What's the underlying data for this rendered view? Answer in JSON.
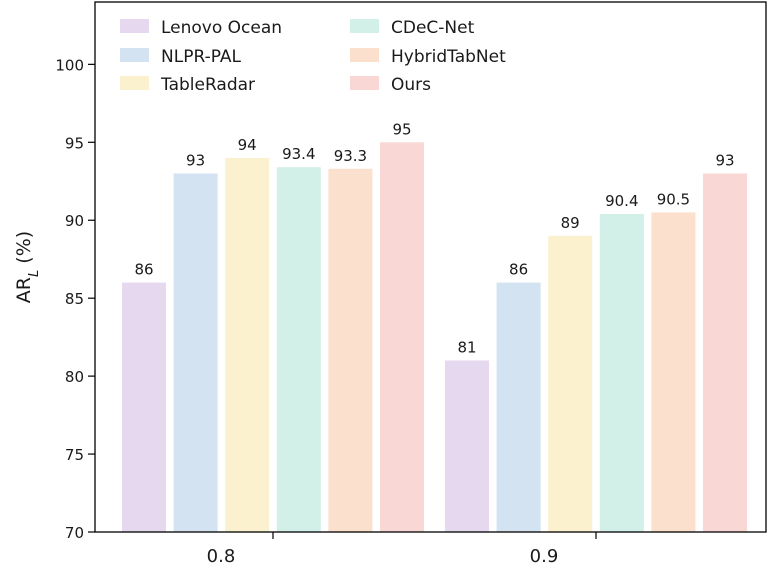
{
  "chart_data": {
    "type": "bar",
    "categories": [
      "0.8",
      "0.9"
    ],
    "series": [
      {
        "name": "Lenovo Ocean",
        "values": [
          86,
          81
        ],
        "color": "#e6d8ee"
      },
      {
        "name": "NLPR-PAL",
        "values": [
          93,
          86
        ],
        "color": "#d3e3f1"
      },
      {
        "name": "TableRadar",
        "values": [
          94,
          89
        ],
        "color": "#fbf1cf"
      },
      {
        "name": "CDeC-Net",
        "values": [
          93.4,
          90.4
        ],
        "color": "#d2efe8"
      },
      {
        "name": "HybridTabNet",
        "values": [
          93.3,
          90.5
        ],
        "color": "#fae0cd"
      },
      {
        "name": "Ours",
        "values": [
          95,
          93
        ],
        "color": "#f8d7d4"
      }
    ],
    "value_labels": [
      [
        "86",
        "81"
      ],
      [
        "93",
        "86"
      ],
      [
        "94",
        "89"
      ],
      [
        "93.4",
        "90.4"
      ],
      [
        "93.3",
        "90.5"
      ],
      [
        "95",
        "93"
      ]
    ],
    "ylabel_main": "AR",
    "ylabel_sub": "L",
    "ylabel_tail": " (%)",
    "ylim": [
      70,
      104
    ],
    "yticks": [
      70,
      75,
      80,
      85,
      90,
      95,
      100
    ],
    "legend_position": "top-left",
    "legend_columns": 2,
    "grid": false
  }
}
